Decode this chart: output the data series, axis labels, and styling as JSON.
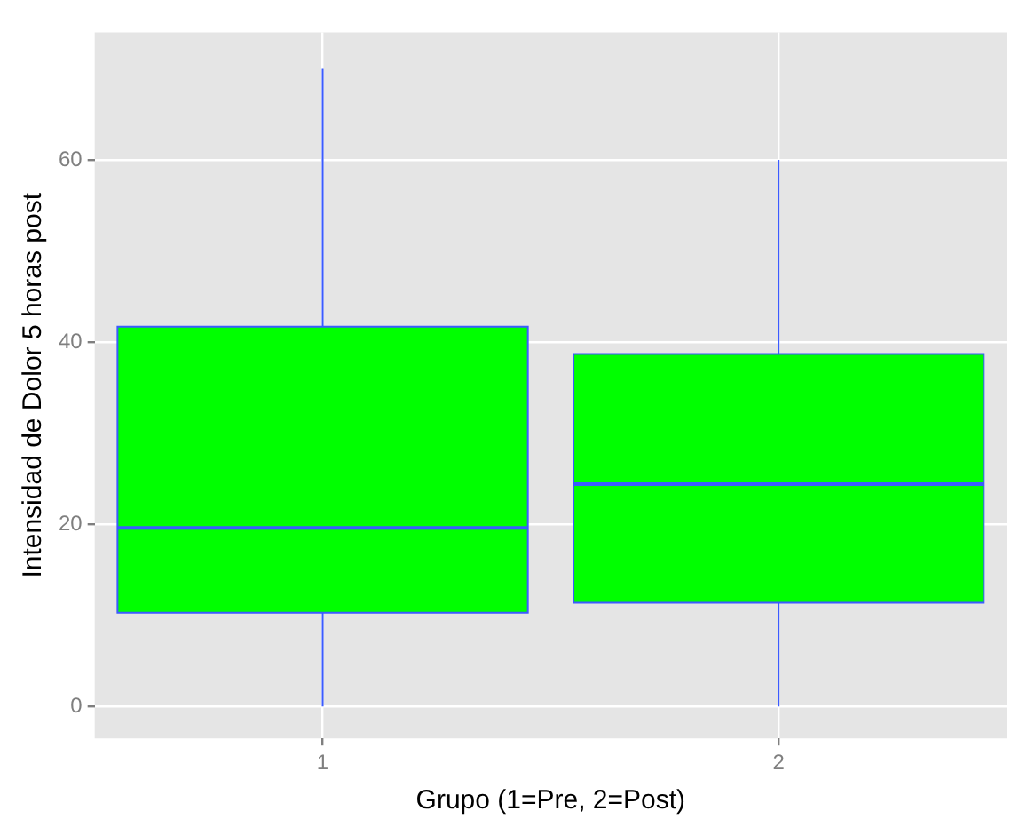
{
  "chart_data": {
    "type": "box",
    "xlabel": "Grupo (1=Pre, 2=Post)",
    "ylabel": "Intensidad de Dolor 5 horas post",
    "categories": [
      "1",
      "2"
    ],
    "color": "#00ff00",
    "boxes": [
      {
        "low": 0,
        "q1": 10.3,
        "median": 19.6,
        "q3": 41.7,
        "high": 70
      },
      {
        "low": 0,
        "q1": 11.4,
        "median": 24.4,
        "q3": 38.7,
        "high": 60
      }
    ],
    "ylim": [
      -3.5,
      74
    ],
    "yticks": [
      0,
      20,
      40,
      60
    ],
    "grid": true,
    "legend": false
  }
}
